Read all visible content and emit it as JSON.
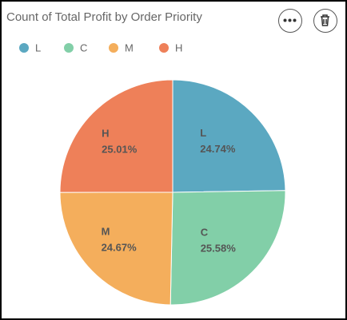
{
  "chart_data": {
    "type": "pie",
    "title": "Count of Total Profit by Order Priority",
    "categories": [
      "L",
      "C",
      "M",
      "H"
    ],
    "values": [
      24.74,
      25.58,
      24.67,
      25.01
    ],
    "value_labels": [
      "24.74%",
      "25.58%",
      "24.67%",
      "25.01%"
    ],
    "colors": [
      "#5ba8c1",
      "#82cfa8",
      "#f4ae5c",
      "#ee8059"
    ]
  }
}
